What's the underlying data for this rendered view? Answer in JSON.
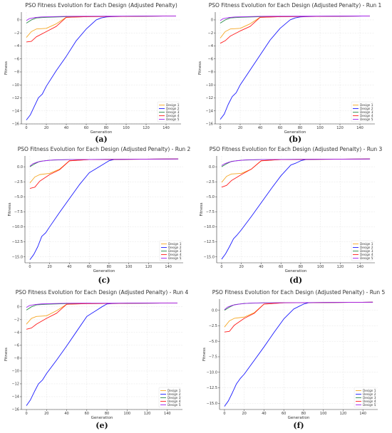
{
  "series_names": [
    "Design 1",
    "Design 2",
    "Design 3",
    "Design 4",
    "Design 5"
  ],
  "series_colors": [
    "#f5a623",
    "#1a1aff",
    "#2a8a4a",
    "#ff1a1a",
    "#a020f0"
  ],
  "chart_data": [
    {
      "type": "line",
      "caption": "(a)",
      "title": "PSO Fitness Evolution for Each Design (Adjusted Penalty)",
      "xlabel": "Generation",
      "ylabel": "Fitness",
      "xlim": [
        -5,
        155
      ],
      "ylim": [
        -16,
        1.2
      ],
      "xticks": [
        0,
        20,
        40,
        60,
        80,
        100,
        120,
        140
      ],
      "yticks": [
        0,
        -2,
        -4,
        -6,
        -8,
        -10,
        -12,
        -14,
        -16
      ],
      "ytick_labels": [
        "0",
        "−2",
        "−4",
        "−6",
        "−8",
        "−10",
        "−12",
        "−14",
        "−16"
      ],
      "grid": true,
      "legend": "bottom-right",
      "series": [
        {
          "name": "Design 1",
          "x": [
            0,
            5,
            10,
            20,
            30,
            40,
            60,
            100,
            150
          ],
          "y": [
            -2.7,
            -1.8,
            -1.4,
            -1.3,
            -0.6,
            0.4,
            0.5,
            0.55,
            0.6
          ]
        },
        {
          "name": "Design 2",
          "x": [
            0,
            4,
            8,
            12,
            16,
            20,
            30,
            40,
            50,
            60,
            70,
            75,
            80,
            85,
            100,
            150
          ],
          "y": [
            -15.4,
            -14.6,
            -13.3,
            -12.0,
            -11.4,
            -10.2,
            -7.8,
            -5.6,
            -3.2,
            -1.4,
            0.0,
            0.3,
            0.45,
            0.5,
            0.55,
            0.6
          ]
        },
        {
          "name": "Design 3",
          "x": [
            0,
            5,
            10,
            20,
            40,
            150
          ],
          "y": [
            -0.5,
            0.0,
            0.3,
            0.4,
            0.5,
            0.6
          ]
        },
        {
          "name": "Design 4",
          "x": [
            0,
            5,
            10,
            20,
            30,
            40,
            60,
            100,
            150
          ],
          "y": [
            -3.4,
            -3.3,
            -2.6,
            -1.8,
            -1.0,
            0.4,
            0.5,
            0.55,
            0.6
          ]
        },
        {
          "name": "Design 5",
          "x": [
            0,
            3,
            8,
            15,
            25,
            40,
            150
          ],
          "y": [
            -0.1,
            0.2,
            0.35,
            0.45,
            0.5,
            0.55,
            0.6
          ]
        }
      ]
    },
    {
      "type": "line",
      "caption": "(b)",
      "title": "PSO Fitness Evolution for Each Design (Adjusted Penalty) - Run 1",
      "xlabel": "Generation",
      "ylabel": "Fitness",
      "xlim": [
        -5,
        155
      ],
      "ylim": [
        -16,
        1.2
      ],
      "xticks": [
        0,
        20,
        40,
        60,
        80,
        100,
        120,
        140
      ],
      "yticks": [
        0,
        -2,
        -4,
        -6,
        -8,
        -10,
        -12,
        -14,
        -16
      ],
      "ytick_labels": [
        "0",
        "−2",
        "−4",
        "−6",
        "−8",
        "−10",
        "−12",
        "−14",
        "−16"
      ],
      "grid": true,
      "legend": "bottom-right",
      "series": [
        {
          "name": "Design 1",
          "x": [
            0,
            5,
            10,
            20,
            30,
            40,
            60,
            100,
            150
          ],
          "y": [
            -2.8,
            -1.8,
            -1.4,
            -1.3,
            -0.6,
            0.4,
            0.5,
            0.55,
            0.6
          ]
        },
        {
          "name": "Design 2",
          "x": [
            0,
            4,
            8,
            12,
            16,
            20,
            30,
            40,
            50,
            60,
            70,
            75,
            80,
            85,
            100,
            150
          ],
          "y": [
            -15.3,
            -14.5,
            -13.0,
            -11.8,
            -11.2,
            -10.0,
            -7.7,
            -5.4,
            -3.1,
            -1.3,
            0.0,
            0.3,
            0.45,
            0.5,
            0.55,
            0.6
          ]
        },
        {
          "name": "Design 3",
          "x": [
            0,
            5,
            10,
            20,
            40,
            150
          ],
          "y": [
            -0.5,
            0.0,
            0.3,
            0.4,
            0.5,
            0.6
          ]
        },
        {
          "name": "Design 4",
          "x": [
            0,
            5,
            10,
            20,
            30,
            40,
            60,
            100,
            150
          ],
          "y": [
            -3.6,
            -3.2,
            -2.5,
            -1.7,
            -1.0,
            0.4,
            0.5,
            0.55,
            0.6
          ]
        },
        {
          "name": "Design 5",
          "x": [
            0,
            3,
            8,
            15,
            25,
            40,
            150
          ],
          "y": [
            -0.1,
            0.2,
            0.35,
            0.45,
            0.5,
            0.55,
            0.6
          ]
        }
      ]
    },
    {
      "type": "line",
      "caption": "(c)",
      "title": "PSO Fitness Evolution for Each Design (Adjusted Penalty) - Run 2",
      "xlabel": "Generation",
      "ylabel": "Fitness",
      "xlim": [
        -5,
        155
      ],
      "ylim": [
        -16,
        1.8
      ],
      "xticks": [
        0,
        20,
        40,
        60,
        80,
        100,
        120,
        140
      ],
      "yticks": [
        0,
        -2.5,
        -5,
        -7.5,
        -10,
        -12.5,
        -15
      ],
      "ytick_labels": [
        "0.0",
        "−2.5",
        "−5.0",
        "−7.5",
        "−10.0",
        "−12.5",
        "−15.0"
      ],
      "grid": true,
      "legend": "bottom-right",
      "series": [
        {
          "name": "Design 1",
          "x": [
            0,
            5,
            10,
            20,
            30,
            40,
            60,
            100,
            150
          ],
          "y": [
            -2.7,
            -1.7,
            -1.3,
            -1.1,
            -0.4,
            1.0,
            1.2,
            1.25,
            1.3
          ]
        },
        {
          "name": "Design 2",
          "x": [
            0,
            4,
            8,
            12,
            16,
            20,
            30,
            40,
            50,
            60,
            67,
            75,
            80,
            85,
            100,
            150
          ],
          "y": [
            -15.5,
            -14.6,
            -13.3,
            -11.6,
            -11.0,
            -10.0,
            -7.6,
            -5.3,
            -3.0,
            -1.0,
            -0.3,
            0.5,
            1.0,
            1.2,
            1.25,
            1.3
          ]
        },
        {
          "name": "Design 3",
          "x": [
            0,
            5,
            10,
            20,
            40,
            150
          ],
          "y": [
            0.0,
            0.5,
            0.9,
            1.1,
            1.2,
            1.3
          ]
        },
        {
          "name": "Design 4",
          "x": [
            0,
            5,
            10,
            20,
            30,
            40,
            60,
            100,
            150
          ],
          "y": [
            -3.6,
            -3.4,
            -2.4,
            -1.3,
            -0.5,
            1.0,
            1.2,
            1.25,
            1.3
          ]
        },
        {
          "name": "Design 5",
          "x": [
            0,
            3,
            8,
            15,
            25,
            40,
            150
          ],
          "y": [
            0.1,
            0.5,
            0.8,
            1.0,
            1.15,
            1.2,
            1.3
          ]
        }
      ]
    },
    {
      "type": "line",
      "caption": "(d)",
      "title": "PSO Fitness Evolution for Each Design (Adjusted Penalty) - Run 3",
      "xlabel": "Generation",
      "ylabel": "Fitness",
      "xlim": [
        -5,
        155
      ],
      "ylim": [
        -16,
        1.8
      ],
      "xticks": [
        0,
        20,
        40,
        60,
        80,
        100,
        120,
        140
      ],
      "yticks": [
        0,
        -2.5,
        -5,
        -7.5,
        -10,
        -12.5,
        -15
      ],
      "ytick_labels": [
        "0.0",
        "−2.5",
        "−5.0",
        "−7.5",
        "−10.0",
        "−12.5",
        "−15.0"
      ],
      "grid": true,
      "legend": "bottom-right",
      "series": [
        {
          "name": "Design 1",
          "x": [
            0,
            5,
            10,
            20,
            30,
            40,
            60,
            100,
            150
          ],
          "y": [
            -2.6,
            -1.6,
            -1.2,
            -1.1,
            -0.4,
            1.0,
            1.2,
            1.25,
            1.3
          ]
        },
        {
          "name": "Design 2",
          "x": [
            0,
            4,
            8,
            12,
            16,
            20,
            30,
            40,
            50,
            60,
            70,
            75,
            80,
            85,
            100,
            150
          ],
          "y": [
            -15.4,
            -14.5,
            -13.3,
            -12.0,
            -11.3,
            -10.5,
            -8.3,
            -6.0,
            -3.7,
            -1.5,
            0.3,
            0.6,
            1.0,
            1.2,
            1.25,
            1.3
          ]
        },
        {
          "name": "Design 3",
          "x": [
            0,
            5,
            10,
            20,
            40,
            150
          ],
          "y": [
            0.0,
            0.5,
            0.9,
            1.1,
            1.2,
            1.3
          ]
        },
        {
          "name": "Design 4",
          "x": [
            0,
            5,
            10,
            20,
            30,
            40,
            60,
            100,
            150
          ],
          "y": [
            -3.4,
            -3.1,
            -2.3,
            -1.3,
            -0.4,
            1.0,
            1.2,
            1.25,
            1.3
          ]
        },
        {
          "name": "Design 5",
          "x": [
            0,
            3,
            8,
            15,
            25,
            40,
            150
          ],
          "y": [
            0.2,
            0.5,
            0.8,
            1.0,
            1.15,
            1.2,
            1.3
          ]
        }
      ]
    },
    {
      "type": "line",
      "caption": "(e)",
      "title": "PSO Fitness Evolution for Each Design (Adjusted Penalty) - Run 4",
      "xlabel": "Generation",
      "ylabel": "Fitness",
      "xlim": [
        -5,
        155
      ],
      "ylim": [
        -16,
        1.2
      ],
      "xticks": [
        0,
        20,
        40,
        60,
        80,
        100,
        120,
        140
      ],
      "yticks": [
        0,
        -2,
        -4,
        -6,
        -8,
        -10,
        -12,
        -14,
        -16
      ],
      "ytick_labels": [
        "0",
        "−2",
        "−4",
        "−6",
        "−8",
        "−10",
        "−12",
        "−14",
        "−16"
      ],
      "grid": true,
      "legend": "bottom-right",
      "series": [
        {
          "name": "Design 1",
          "x": [
            0,
            5,
            10,
            20,
            30,
            40,
            60,
            100,
            150
          ],
          "y": [
            -2.7,
            -1.8,
            -1.5,
            -1.4,
            -0.6,
            0.4,
            0.5,
            0.55,
            0.6
          ]
        },
        {
          "name": "Design 2",
          "x": [
            0,
            4,
            8,
            12,
            16,
            20,
            30,
            40,
            50,
            60,
            70,
            75,
            80,
            85,
            100,
            150
          ],
          "y": [
            -15.4,
            -14.5,
            -13.2,
            -12.0,
            -11.4,
            -10.4,
            -8.3,
            -6.1,
            -3.8,
            -1.5,
            -0.5,
            0.0,
            0.45,
            0.5,
            0.55,
            0.6
          ]
        },
        {
          "name": "Design 3",
          "x": [
            0,
            5,
            10,
            20,
            40,
            150
          ],
          "y": [
            -0.5,
            0.0,
            0.3,
            0.4,
            0.5,
            0.6
          ]
        },
        {
          "name": "Design 4",
          "x": [
            0,
            5,
            10,
            20,
            30,
            40,
            60,
            100,
            150
          ],
          "y": [
            -3.5,
            -3.3,
            -2.7,
            -1.8,
            -1.0,
            0.4,
            0.5,
            0.55,
            0.6
          ]
        },
        {
          "name": "Design 5",
          "x": [
            0,
            3,
            8,
            15,
            25,
            40,
            150
          ],
          "y": [
            -0.1,
            0.2,
            0.35,
            0.45,
            0.5,
            0.55,
            0.6
          ]
        }
      ]
    },
    {
      "type": "line",
      "caption": "(f)",
      "title": "PSO Fitness Evolution for Each Design (Adjusted Penalty) - Run 5",
      "xlabel": "Generation",
      "ylabel": "Fitness",
      "xlim": [
        -5,
        155
      ],
      "ylim": [
        -16,
        1.8
      ],
      "xticks": [
        0,
        20,
        40,
        60,
        80,
        100,
        120,
        140
      ],
      "yticks": [
        0,
        -2.5,
        -5,
        -7.5,
        -10,
        -12.5,
        -15
      ],
      "ytick_labels": [
        "0.0",
        "−2.5",
        "−5.0",
        "−7.5",
        "−10.0",
        "−12.5",
        "−15.0"
      ],
      "grid": true,
      "legend": "bottom-right",
      "series": [
        {
          "name": "Design 1",
          "x": [
            0,
            5,
            10,
            20,
            30,
            40,
            60,
            100,
            150
          ],
          "y": [
            -2.7,
            -1.7,
            -1.3,
            -1.1,
            -0.4,
            1.0,
            1.2,
            1.25,
            1.3
          ]
        },
        {
          "name": "Design 2",
          "x": [
            0,
            4,
            8,
            12,
            16,
            20,
            30,
            40,
            50,
            60,
            70,
            75,
            80,
            85,
            100,
            150
          ],
          "y": [
            -15.5,
            -14.6,
            -13.3,
            -11.9,
            -11.0,
            -10.3,
            -8.1,
            -5.9,
            -3.6,
            -1.4,
            0.2,
            0.6,
            1.0,
            1.2,
            1.25,
            1.3
          ]
        },
        {
          "name": "Design 3",
          "x": [
            0,
            5,
            10,
            20,
            40,
            150
          ],
          "y": [
            0.0,
            0.5,
            0.9,
            1.1,
            1.2,
            1.3
          ]
        },
        {
          "name": "Design 4",
          "x": [
            0,
            5,
            10,
            20,
            30,
            40,
            60,
            100,
            150
          ],
          "y": [
            -3.5,
            -3.4,
            -2.4,
            -1.3,
            -0.5,
            1.0,
            1.2,
            1.25,
            1.3
          ]
        },
        {
          "name": "Design 5",
          "x": [
            0,
            3,
            8,
            15,
            25,
            40,
            150
          ],
          "y": [
            0.1,
            0.5,
            0.8,
            1.0,
            1.15,
            1.2,
            1.3
          ]
        }
      ]
    }
  ]
}
